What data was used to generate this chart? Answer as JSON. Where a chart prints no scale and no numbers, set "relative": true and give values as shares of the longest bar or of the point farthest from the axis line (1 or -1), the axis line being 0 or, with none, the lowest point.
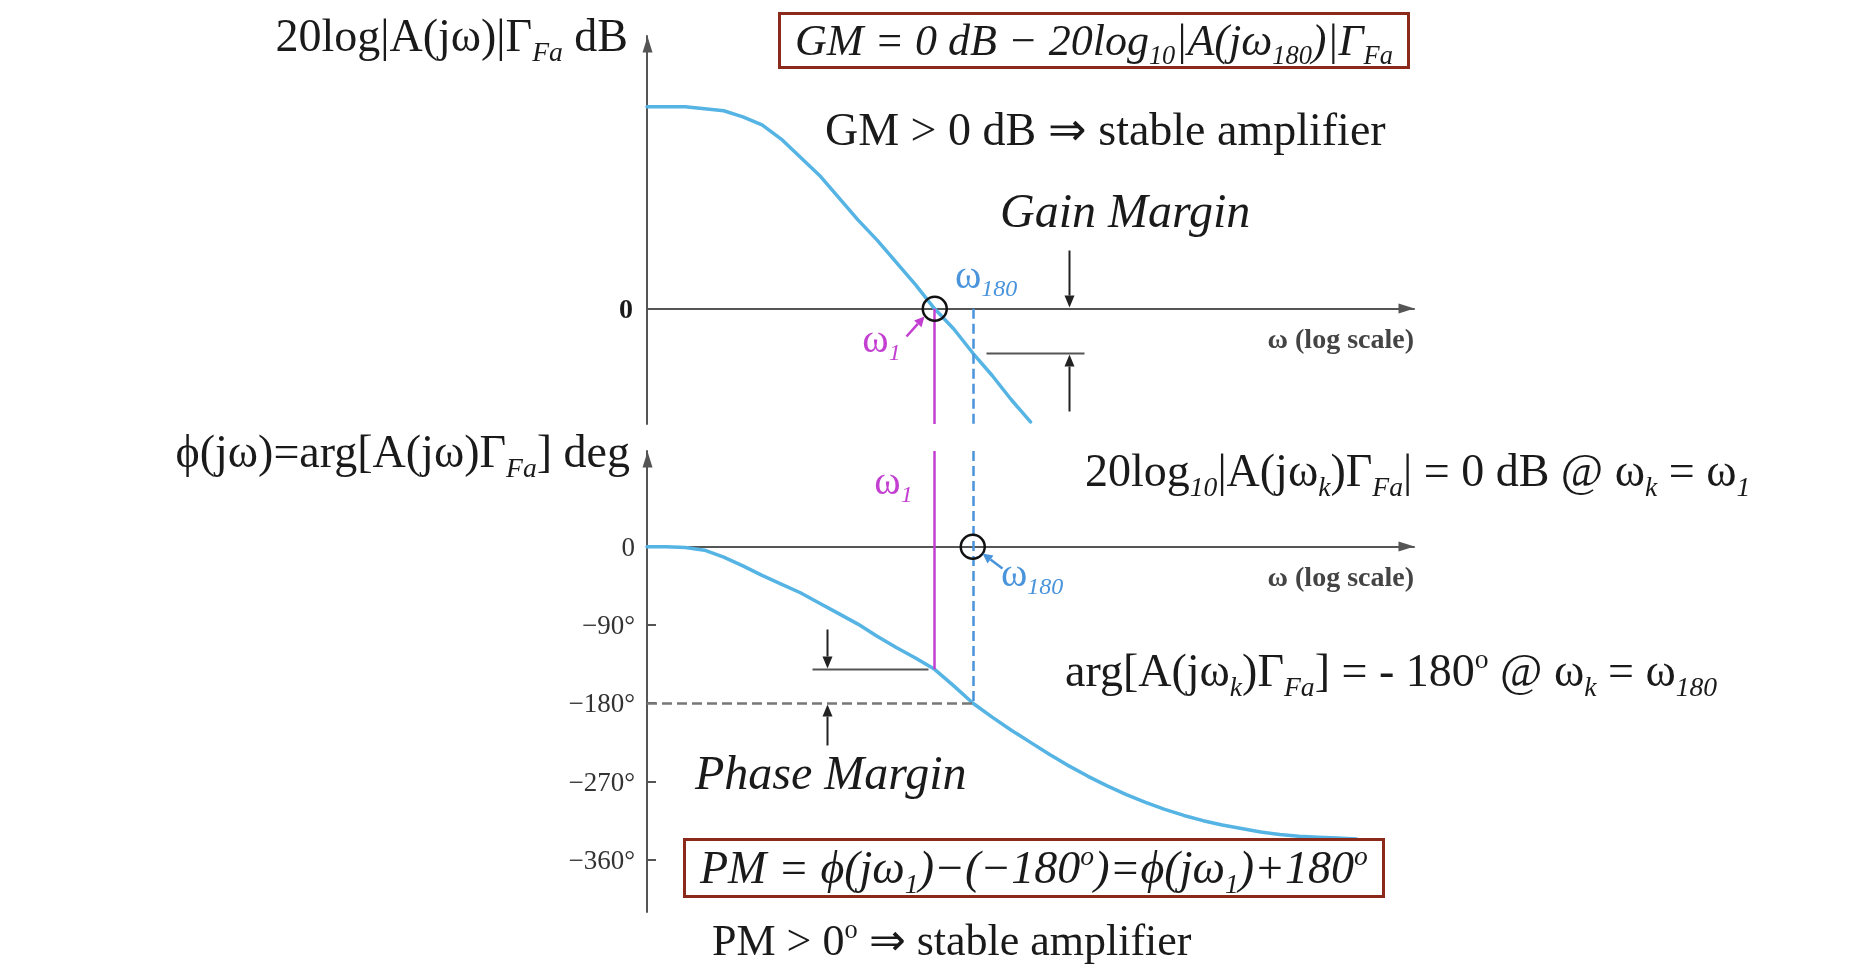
{
  "chart_data": [
    {
      "type": "line",
      "ylabel": "20log|A(jω)|Γ$_{Fa}$ dB",
      "xlabel": "ω (log scale)",
      "relative": true,
      "tick_labels": false,
      "categories": [
        null,
        null,
        null,
        null,
        null,
        null,
        null,
        null,
        null,
        null,
        null,
        null,
        null,
        null,
        null,
        null,
        null,
        null,
        null,
        null,
        null,
        null,
        null,
        null,
        null,
        null,
        null,
        null,
        null,
        null,
        null,
        null,
        null,
        null,
        null,
        null,
        null,
        null,
        null,
        null,
        null
      ],
      "series": [
        {
          "color": "#55b4e4",
          "values": [
            1,
            1,
            1,
            0.99,
            0.98,
            0.95,
            0.91,
            0.84,
            0.75,
            0.66,
            0.55,
            0.44,
            0.34,
            0.23,
            0.12,
            0,
            -0.1,
            -0.22,
            -0.33,
            -0.45,
            -0.56,
            null,
            null,
            null,
            null,
            null,
            null,
            null,
            null,
            null,
            null,
            null,
            null,
            null,
            null,
            null,
            null,
            null,
            null,
            null,
            null
          ]
        }
      ],
      "annotations": [
        "0",
        "GM = 0 dB − 20log$_{10}$|A(jω$_{180}$)|Γ$_{Fa}$",
        "GM > 0 dB ⇒ stable amplifier",
        "Gain Margin",
        "ω$_{1}$",
        "ω$_{180}$"
      ]
    },
    {
      "type": "line",
      "ylabel": "ϕ(jω)=arg[A(jω)Γ$_{Fa}$] deg",
      "xlabel": "ω (log scale)",
      "tick_labels": "y",
      "categories": [
        null,
        null,
        null,
        null,
        null,
        null,
        null,
        null,
        null,
        null,
        null,
        null,
        null,
        null,
        null,
        null,
        null,
        null,
        null,
        null,
        null,
        null,
        null,
        null,
        null,
        null,
        null,
        null,
        null,
        null,
        null,
        null,
        null,
        null,
        null,
        null,
        null,
        null,
        null,
        null,
        null
      ],
      "ylim": [
        -420,
        110
      ],
      "yticks": [
        0,
        {
          "value": -90,
          "label": "−90°"
        },
        {
          "value": -180,
          "label": "−180°"
        },
        {
          "value": -270,
          "label": "−270°"
        },
        {
          "value": -360,
          "label": "−360°"
        }
      ],
      "series": [
        {
          "color": "#55b4e4",
          "values": [
            0,
            0,
            -1,
            -4,
            -12,
            -22,
            -33,
            -43,
            -53,
            -65,
            -77,
            -89,
            -103,
            -116,
            -128,
            -141,
            -160,
            -180,
            -196,
            -211,
            -225,
            -239,
            -252,
            -264,
            -275,
            -285,
            -294,
            -302,
            -309,
            -315,
            -320,
            -324,
            -328,
            -331,
            -333,
            -334,
            -335,
            -336,
            null,
            null,
            null
          ]
        }
      ],
      "ref_lines": [
        {
          "axis": "y",
          "value": -180,
          "color": "#777777",
          "line_style": "dashed"
        }
      ],
      "annotations": [
        "20log$_{10}$|A(jω$_{k}$)Γ$_{Fa}$| = 0 dB @ ω$_{k}$ = ω$_{1}$",
        "arg[A(jω$_{k}$)Γ$_{Fa}$] = - 180$^{o}$ @ ω$_{k}$ = ω$_{180}$",
        "Phase Margin",
        "PM = ϕ(jω$_{1}$)−(−180$^{o}$)=ϕ(jω$_{1}$)+180$^{o}$",
        "PM > 0$^{o}$ ⇒ stable amplifier",
        "ω$_{1}$",
        "ω$_{180}$"
      ]
    }
  ]
}
